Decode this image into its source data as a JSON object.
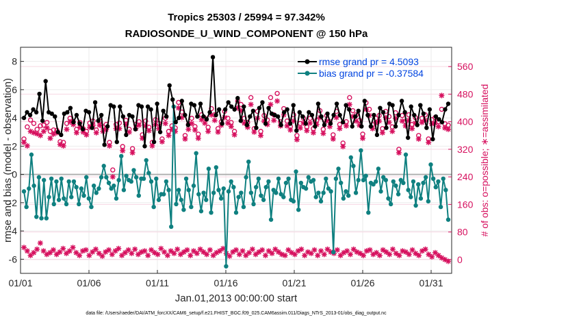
{
  "chart_data": {
    "type": "line",
    "title_line1": "Tropics 25303 / 25994 = 97.342%",
    "title_line2": "RADIOSONDE_U_WIND_COMPONENT @ 150 hPa",
    "xlabel": "Jan.01,2013 00:00:00 start",
    "ylabel_left": "rmse and bias (model - observation)",
    "ylabel_right": "# of obs: o=possible; ∗=assimilated",
    "xlim": [
      0,
      31.5
    ],
    "ylim_left": [
      -7,
      9
    ],
    "ylim_right": [
      -40,
      616
    ],
    "x_ticks": [
      {
        "value": 0,
        "label": "01/01"
      },
      {
        "value": 5,
        "label": "01/06"
      },
      {
        "value": 10,
        "label": "01/11"
      },
      {
        "value": 15,
        "label": "01/16"
      },
      {
        "value": 20,
        "label": "01/21"
      },
      {
        "value": 25,
        "label": "01/26"
      },
      {
        "value": 30,
        "label": "01/31"
      }
    ],
    "y_ticks_left": [
      -6,
      -4,
      -2,
      0,
      2,
      4,
      6,
      8
    ],
    "y_tick_labels_left": [
      "-6",
      "-4",
      "-2",
      "0",
      "2",
      "4",
      "6",
      "8"
    ],
    "y_ticks_right": [
      0,
      80,
      160,
      240,
      320,
      400,
      480,
      560
    ],
    "y_tick_labels_right": [
      "0",
      "80",
      "160",
      "240",
      "320",
      "400",
      "480",
      "560"
    ],
    "legend": [
      {
        "name": "rmse grand pr = 4.5093",
        "color": "#000000"
      },
      {
        "name": "bias grand pr = -0.37584",
        "color": "#0f8080"
      }
    ],
    "footnote": "data file: /Users/raeder/DAI/ATM_forcXX/CAM6_setup/f.e21.FHIST_BGC.f09_025.CAM6assim.011/Diags_NTrS_2013-01/obs_diag_output.nc",
    "series": [
      {
        "name": "rmse",
        "color": "#000000",
        "axis": "left",
        "values": [
          4.0,
          4.4,
          4.2,
          4.6,
          4.4,
          5.7,
          3.8,
          6.6,
          4.4,
          4.3,
          4.1,
          3.0,
          2.8,
          4.3,
          4.4,
          4.7,
          3.7,
          4.2,
          3.6,
          3.2,
          4.5,
          4.4,
          3.3,
          5.1,
          3.8,
          4.2,
          2.1,
          3.4,
          4.9,
          4.8,
          2.3,
          4.8,
          4.1,
          2.8,
          4.2,
          4.1,
          3.2,
          4.9,
          4.8,
          2.0,
          4.8,
          4.6,
          2.3,
          5.0,
          3.0,
          4.5,
          4.1,
          6.3,
          5.3,
          3.7,
          4.0,
          5.2,
          4.2,
          3.5,
          5.0,
          4.9,
          4.1,
          5.0,
          4.1,
          3.9,
          4.4,
          8.3,
          4.2,
          4.6,
          3.6,
          4.6,
          5.1,
          4.8,
          4.6,
          5.4,
          3.8,
          4.8,
          3.5,
          4.1,
          4.5,
          3.3,
          4.7,
          5.1,
          3.6,
          4.7,
          4.3,
          4.2,
          4.1,
          3.5,
          4.4,
          4.6,
          3.6,
          4.9,
          3.1,
          4.4,
          4.1,
          3.6,
          4.4,
          4.2,
          3.4,
          5.0,
          4.1,
          3.5,
          4.3,
          3.6,
          4.2,
          5.0,
          4.2,
          3.7,
          4.9,
          4.6,
          3.4,
          4.1,
          4.5,
          3.4,
          5.2,
          4.2,
          3.4,
          4.2,
          2.8,
          4.7,
          4.4,
          3.3,
          5.0,
          4.9,
          3.4,
          4.2,
          5.2,
          4.4,
          2.6,
          4.8,
          4.2,
          3.5,
          4.9,
          4.3,
          3.3,
          4.6,
          2.5,
          4.1,
          3.9,
          3.7,
          4.6,
          5.0
        ]
      },
      {
        "name": "bias",
        "color": "#0f8080",
        "axis": "left",
        "values": [
          -1.2,
          -2.3,
          -1.0,
          1.4,
          -0.8,
          -3.0,
          -0.2,
          -3.1,
          -0.4,
          -3.1,
          -1.6,
          -0.3,
          -2.1,
          -0.5,
          -1.8,
          -0.3,
          -1.7,
          -2.1,
          -0.5,
          -1.6,
          -0.5,
          -0.9,
          -2.1,
          -1.0,
          -1.5,
          -0.2,
          -1.7,
          -2.3,
          -0.8,
          -1.3,
          -1.0,
          -0.2,
          0.6,
          -0.2,
          -0.6,
          -1.0,
          -0.8,
          -1.7,
          -0.4,
          1.3,
          -1.1,
          -0.1,
          -0.4,
          -0.5,
          0.3,
          -0.2,
          -1.5,
          -0.3,
          -0.3,
          1.0,
          0.1,
          -0.5,
          -2.3,
          -0.3,
          -1.8,
          -1.4,
          -1.4,
          -0.5,
          -1.1,
          -3.7,
          4.8,
          -2.1,
          -1.1,
          -1.8,
          -2.5,
          -0.3,
          -1.1,
          -2.3,
          -0.8,
          1.5,
          -1.4,
          -2.6,
          -1.3,
          -1.8,
          0.4,
          -2.7,
          -1.3,
          0.5,
          -1.1,
          -1.7,
          -1.0,
          -6.5,
          -1.2,
          -0.5,
          -0.9,
          -2.7,
          -1.6,
          -1.3,
          -2.3,
          -0.2,
          0.9,
          -1.3,
          -2.1,
          -0.9,
          -0.3,
          -1.5,
          -1.8,
          -0.9,
          -0.5,
          -3.2,
          -1.1,
          -1.3,
          -0.3,
          -1.4,
          -1.6,
          -0.6,
          -0.3,
          -1.8,
          -1.9,
          0.2,
          -2.5,
          -0.6,
          -0.9,
          -1.0,
          -0.2,
          -0.5,
          -0.4,
          -1.6,
          -1.3,
          -1.9,
          -1.3,
          -0.3,
          -1.0,
          -1.2,
          -5.5,
          -0.3,
          0.4,
          -0.6,
          -1.7,
          -1.2,
          -1.5,
          1.2,
          0.6,
          -1.3,
          -0.4,
          1.7,
          -0.4,
          -0.1,
          -2.7,
          -0.6,
          -0.7,
          -0.5,
          0.4,
          -1.2,
          -0.2,
          -0.4,
          -1.7,
          -2.1,
          -0.5,
          -0.8,
          -1.4,
          -0.4,
          -0.6,
          1.4,
          -1.1,
          -1.6,
          -0.5,
          -2.2,
          -0.7,
          -1.7,
          -0.6,
          -0.2,
          -1.9,
          0.7,
          -0.3,
          -0.9,
          -0.5,
          -2.3,
          -0.3,
          -1.1,
          -3.2
        ]
      },
      {
        "name": "obs possible",
        "color": "#d6105e",
        "axis": "right",
        "marker": "o",
        "values": [
          350,
          385,
          405,
          395,
          378,
          388,
          390,
          398,
          372,
          376,
          375,
          342,
          340,
          395,
          410,
          400,
          378,
          398,
          380,
          372,
          396,
          402,
          376,
          402,
          385,
          392,
          340,
          260,
          392,
          396,
          328,
          404,
          378,
          322,
          392,
          400,
          362,
          402,
          384,
          340,
          406,
          395,
          350,
          410,
          372,
          388,
          382,
          456,
          428,
          360,
          392,
          410,
          386,
          364,
          420,
          410,
          384,
          438,
          420,
          380,
          400,
          430,
          410,
          398,
          372,
          460,
          450,
          410,
          398,
          470,
          380,
          430,
          372,
          418,
          405,
          470,
          420,
          482,
          400,
          438,
          402,
          386,
          420,
          360,
          395,
          410,
          385,
          410,
          380,
          404,
          432,
          378,
          418,
          400,
          362,
          430,
          392,
          338,
          400,
          470,
          432,
          420,
          404,
          364,
          455,
          436,
          392,
          410,
          418,
          380,
          430,
          415,
          385,
          426,
          320,
          418,
          400,
          420,
          392,
          412,
          360,
          410,
          420,
          350,
          406,
          412,
          400,
          436,
          394,
          390
        ]
      },
      {
        "name": "obs assimilated",
        "color": "#d6105e",
        "axis": "right",
        "marker": "*",
        "values": [
          340,
          330,
          372,
          368,
          365,
          360,
          372,
          382,
          352,
          364,
          368,
          334,
          330,
          378,
          400,
          392,
          368,
          384,
          370,
          362,
          384,
          390,
          368,
          390,
          372,
          378,
          330,
          240,
          380,
          380,
          316,
          392,
          370,
          310,
          380,
          390,
          352,
          388,
          374,
          330,
          392,
          380,
          342,
          395,
          360,
          378,
          372,
          440,
          412,
          350,
          378,
          395,
          376,
          352,
          406,
          396,
          372,
          420,
          404,
          370,
          390,
          412,
          396,
          386,
          362,
          440,
          432,
          396,
          384,
          450,
          370,
          410,
          360,
          402,
          392,
          450,
          404,
          460,
          388,
          420,
          388,
          376,
          402,
          348,
          382,
          396,
          374,
          396,
          368,
          392,
          412,
          366,
          402,
          386,
          350,
          412,
          380,
          328,
          388,
          450,
          415,
          402,
          390,
          352,
          436,
          418,
          380,
          396,
          402,
          368,
          412,
          398,
          372,
          410,
          310,
          402,
          388,
          404,
          380,
          396,
          350,
          398,
          404,
          340,
          394,
          396,
          386,
          476,
          382,
          378
        ]
      },
      {
        "name": "obs low group",
        "color": "#d6105e",
        "axis": "right",
        "marker": "*",
        "values": [
          35,
          25,
          12,
          20,
          30,
          48,
          25,
          15,
          20,
          28,
          15,
          22,
          32,
          18,
          25,
          35,
          20,
          12,
          25,
          28,
          12,
          22,
          30,
          18,
          10,
          22,
          28,
          15,
          25,
          32,
          12,
          20,
          28,
          18,
          30,
          15,
          22,
          25,
          12,
          28,
          20,
          15,
          32,
          22,
          12,
          25,
          18,
          30,
          15,
          22,
          28,
          12,
          25,
          18,
          30,
          22,
          15,
          28,
          12,
          20,
          25,
          32,
          18,
          10,
          22,
          28,
          15,
          25,
          12,
          20,
          30,
          15,
          22,
          28,
          12,
          25,
          18,
          30,
          22,
          15,
          12,
          28,
          20,
          15,
          25,
          30,
          12,
          22,
          18,
          28,
          12,
          25,
          15,
          30,
          22,
          18,
          28,
          12,
          20,
          25,
          15,
          30,
          22,
          18,
          12,
          25,
          28,
          15,
          20,
          12,
          28,
          22,
          15,
          30,
          18,
          12,
          25,
          22,
          15,
          28,
          18,
          12,
          25,
          30,
          15,
          8,
          20,
          12,
          5,
          0,
          -5
        ]
      }
    ]
  }
}
